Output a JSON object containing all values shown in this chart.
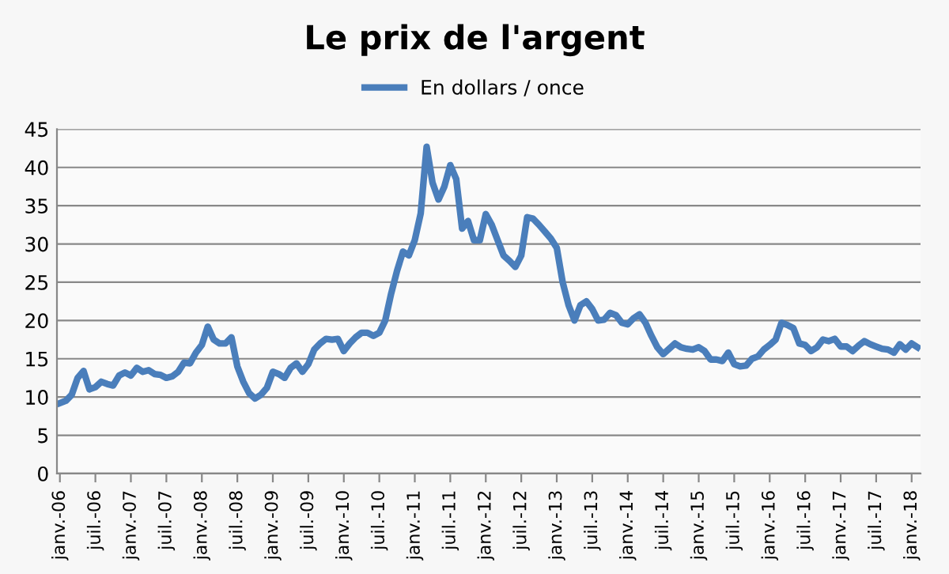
{
  "chart_data": {
    "type": "line",
    "title": "Le prix de l'argent",
    "categories": [
      "janv.-06",
      null,
      null,
      null,
      null,
      null,
      "juil.-06",
      null,
      null,
      null,
      null,
      null,
      "janv.-07",
      null,
      null,
      null,
      null,
      null,
      "juil.-07",
      null,
      null,
      null,
      null,
      null,
      "janv.-08",
      null,
      null,
      null,
      null,
      null,
      "juil.-08",
      null,
      null,
      null,
      null,
      null,
      "janv.-09",
      null,
      null,
      null,
      null,
      null,
      "juil.-09",
      null,
      null,
      null,
      null,
      null,
      "janv.-10",
      null,
      null,
      null,
      null,
      null,
      "juil.-10",
      null,
      null,
      null,
      null,
      null,
      "janv.-11",
      null,
      null,
      null,
      null,
      null,
      "juil.-11",
      null,
      null,
      null,
      null,
      null,
      "janv.-12",
      null,
      null,
      null,
      null,
      null,
      "juil.-12",
      null,
      null,
      null,
      null,
      null,
      "janv.-13",
      null,
      null,
      null,
      null,
      null,
      "juil.-13",
      null,
      null,
      null,
      null,
      null,
      "janv.-14",
      null,
      null,
      null,
      null,
      null,
      "juil.-14",
      null,
      null,
      null,
      null,
      null,
      "janv.-15",
      null,
      null,
      null,
      null,
      null,
      "juil.-15",
      null,
      null,
      null,
      null,
      null,
      "janv.-16",
      null,
      null,
      null,
      null,
      null,
      "juil.-16",
      null,
      null,
      null,
      null,
      null,
      "janv.-17",
      null,
      null,
      null,
      null,
      null,
      "juil.-17",
      null,
      null,
      null,
      null,
      null,
      "janv.-18",
      null
    ],
    "series": [
      {
        "name": "En dollars / once",
        "color": "#4a7ebb",
        "values": [
          9.2,
          9.5,
          10.3,
          12.5,
          13.4,
          11.0,
          11.3,
          12.0,
          11.7,
          11.5,
          12.8,
          13.2,
          12.8,
          13.8,
          13.3,
          13.5,
          13.0,
          12.9,
          12.5,
          12.7,
          13.3,
          14.5,
          14.4,
          15.8,
          16.8,
          19.2,
          17.5,
          17.0,
          17.0,
          17.8,
          14.0,
          12.0,
          10.5,
          9.8,
          10.3,
          11.2,
          13.3,
          13.0,
          12.5,
          13.8,
          14.4,
          13.3,
          14.3,
          16.2,
          17.0,
          17.6,
          17.5,
          17.6,
          16.0,
          17.0,
          17.8,
          18.4,
          18.4,
          18.0,
          18.4,
          20.0,
          23.5,
          26.5,
          29.0,
          28.5,
          30.5,
          34.0,
          42.7,
          38.0,
          35.8,
          37.5,
          40.3,
          38.5,
          32.0,
          33.0,
          30.5,
          30.5,
          33.9,
          32.5,
          30.5,
          28.5,
          27.8,
          27.0,
          28.5,
          33.5,
          33.3,
          32.5,
          31.6,
          30.7,
          29.5,
          25.0,
          22.0,
          20.0,
          22.0,
          22.5,
          21.5,
          20.0,
          20.1,
          21.0,
          20.7,
          19.7,
          19.5,
          20.3,
          20.8,
          19.7,
          18.0,
          16.5,
          15.6,
          16.3,
          17.0,
          16.5,
          16.3,
          16.2,
          16.5,
          16.0,
          14.9,
          14.9,
          14.7,
          15.8,
          14.3,
          14.0,
          14.1,
          15.0,
          15.3,
          16.2,
          16.8,
          17.5,
          19.7,
          19.4,
          19.0,
          17.0,
          16.8,
          16.0,
          16.5,
          17.5,
          17.3,
          17.6,
          16.6,
          16.6,
          16.0,
          16.7,
          17.3,
          16.9,
          16.6,
          16.3,
          16.2,
          15.8,
          16.9,
          16.2,
          17.0,
          16.5
        ]
      }
    ],
    "ylim": [
      0,
      45
    ],
    "yticks": [
      0,
      5,
      10,
      15,
      20,
      25,
      30,
      35,
      40,
      45
    ],
    "grid": "y",
    "legend": "top",
    "marker": "none",
    "line_style": "solid"
  }
}
